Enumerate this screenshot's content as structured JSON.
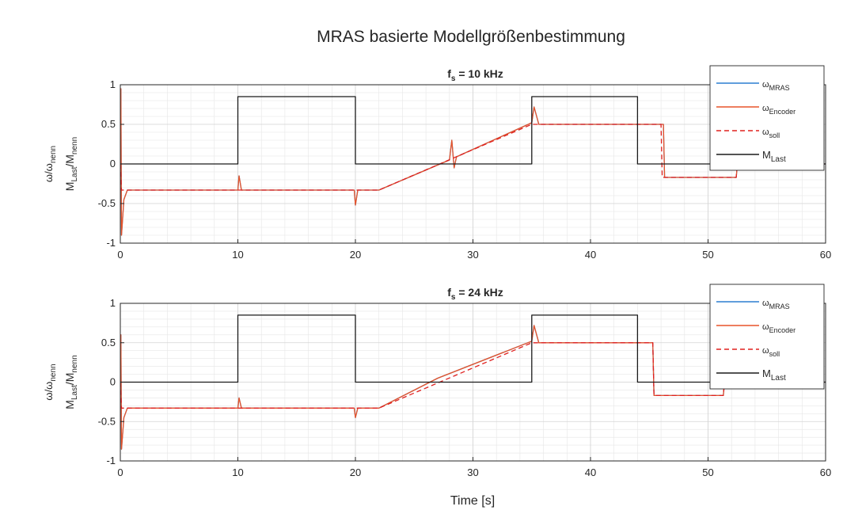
{
  "figure": {
    "title": "MRAS basierte Modellgrößenbestimmung",
    "xlabel": "Time [s]"
  },
  "colors": {
    "mras": "#2b7fd0",
    "encoder": "#e8542a",
    "soll": "#e0201f",
    "last": "#1a1a1a",
    "grid": "#e6e6e6",
    "axis": "#262626"
  },
  "chart_data": [
    {
      "type": "line",
      "title": "f_s = 10 kHz",
      "title_main": "f",
      "title_sub": "s",
      "title_rest": " = 10 kHz",
      "ylabel_top": {
        "main": "ω/ω",
        "sub": "nenn"
      },
      "ylabel_bottom": {
        "main1": "M",
        "sub1": "Last",
        "main2": "/M",
        "sub2": "nenn"
      },
      "xlim": [
        0,
        60
      ],
      "ylim": [
        -1,
        1
      ],
      "xticks": [
        0,
        10,
        20,
        30,
        40,
        50,
        60
      ],
      "yticks": [
        -1,
        -0.5,
        0,
        0.5,
        1
      ],
      "ytick_labels": [
        "-1",
        "-0.5",
        "0",
        "0.5",
        "1"
      ],
      "grid": "major and minor",
      "legend": "top-right",
      "series": [
        {
          "name": "ω_MRAS",
          "main": "ω",
          "sub": "MRAS",
          "style": "solid",
          "color_key": "mras",
          "x": [
            0,
            0.05,
            0.1,
            0.3,
            0.6,
            1.0,
            10,
            10.1,
            10.3,
            19.9,
            20.0,
            20.2,
            22,
            28,
            28.2,
            28.4,
            28.6,
            35,
            35.2,
            35.6,
            44,
            44.2,
            46.2,
            46.3,
            52.4,
            52.5,
            60
          ],
          "y": [
            0,
            0.95,
            -0.9,
            -0.45,
            -0.33,
            -0.33,
            -0.33,
            -0.15,
            -0.33,
            -0.33,
            -0.52,
            -0.33,
            -0.33,
            0.05,
            0.3,
            -0.05,
            0.09,
            0.52,
            0.72,
            0.5,
            0.5,
            0.5,
            0.5,
            -0.17,
            -0.17,
            0.0,
            0.0
          ]
        },
        {
          "name": "ω_Encoder",
          "main": "ω",
          "sub": "Encoder",
          "style": "solid",
          "color_key": "encoder",
          "x": [
            0,
            0.05,
            0.1,
            0.3,
            0.6,
            1.0,
            10,
            10.1,
            10.3,
            19.9,
            20.0,
            20.2,
            22,
            28,
            28.2,
            28.4,
            28.6,
            35,
            35.2,
            35.6,
            44,
            44.2,
            46.2,
            46.3,
            52.4,
            52.5,
            60
          ],
          "y": [
            0,
            0.95,
            -0.9,
            -0.45,
            -0.33,
            -0.33,
            -0.33,
            -0.15,
            -0.33,
            -0.33,
            -0.52,
            -0.33,
            -0.33,
            0.05,
            0.3,
            -0.05,
            0.09,
            0.52,
            0.72,
            0.5,
            0.5,
            0.5,
            0.5,
            -0.17,
            -0.17,
            0.0,
            0.0
          ]
        },
        {
          "name": "ω_soll",
          "main": "ω",
          "sub": "soll",
          "style": "dashed",
          "color_key": "soll",
          "x": [
            0,
            0.1,
            22,
            35,
            46,
            46.1,
            52.4,
            52.5,
            60
          ],
          "y": [
            0,
            -0.33,
            -0.33,
            0.5,
            0.5,
            -0.17,
            -0.17,
            0.0,
            0.0
          ]
        },
        {
          "name": "M_Last",
          "main": "M",
          "sub": "Last",
          "style": "solid",
          "color_key": "last",
          "x": [
            0,
            10,
            10,
            20,
            20,
            35,
            35,
            44,
            44,
            60
          ],
          "y": [
            0,
            0,
            0.85,
            0.85,
            0,
            0,
            0.85,
            0.85,
            0,
            0
          ]
        }
      ]
    },
    {
      "type": "line",
      "title": "f_s = 24 kHz",
      "title_main": "f",
      "title_sub": "s",
      "title_rest": " = 24 kHz",
      "ylabel_top": {
        "main": "ω/ω",
        "sub": "nenn"
      },
      "ylabel_bottom": {
        "main1": "M",
        "sub1": "Last",
        "main2": "/M",
        "sub2": "nenn"
      },
      "xlim": [
        0,
        60
      ],
      "ylim": [
        -1,
        1
      ],
      "xticks": [
        0,
        10,
        20,
        30,
        40,
        50,
        60
      ],
      "yticks": [
        -1,
        -0.5,
        0,
        0.5,
        1
      ],
      "ytick_labels": [
        "-1",
        "-0.5",
        "0",
        "0.5",
        "1"
      ],
      "grid": "major and minor",
      "legend": "top-right",
      "series": [
        {
          "name": "ω_MRAS",
          "main": "ω",
          "sub": "MRAS",
          "style": "solid",
          "color_key": "mras",
          "x": [
            0,
            0.05,
            0.1,
            0.3,
            0.6,
            1.0,
            10,
            10.1,
            10.3,
            19.9,
            20.0,
            20.2,
            22,
            27,
            35,
            35.2,
            35.6,
            44,
            44.2,
            45.3,
            45.4,
            51.3,
            51.4,
            60
          ],
          "y": [
            0,
            0.6,
            -0.85,
            -0.45,
            -0.33,
            -0.33,
            -0.33,
            -0.2,
            -0.33,
            -0.33,
            -0.45,
            -0.33,
            -0.33,
            0.05,
            0.52,
            0.72,
            0.5,
            0.5,
            0.5,
            0.5,
            -0.17,
            -0.17,
            0.0,
            0.0
          ]
        },
        {
          "name": "ω_Encoder",
          "main": "ω",
          "sub": "Encoder",
          "style": "solid",
          "color_key": "encoder",
          "x": [
            0,
            0.05,
            0.1,
            0.3,
            0.6,
            1.0,
            10,
            10.1,
            10.3,
            19.9,
            20.0,
            20.2,
            22,
            27,
            35,
            35.2,
            35.6,
            44,
            44.2,
            45.3,
            45.4,
            51.3,
            51.4,
            60
          ],
          "y": [
            0,
            0.6,
            -0.85,
            -0.45,
            -0.33,
            -0.33,
            -0.33,
            -0.2,
            -0.33,
            -0.33,
            -0.45,
            -0.33,
            -0.33,
            0.05,
            0.52,
            0.72,
            0.5,
            0.5,
            0.5,
            0.5,
            -0.17,
            -0.17,
            0.0,
            0.0
          ]
        },
        {
          "name": "ω_soll",
          "main": "ω",
          "sub": "soll",
          "style": "dashed",
          "color_key": "soll",
          "x": [
            0,
            0.1,
            22,
            35,
            45.3,
            45.4,
            51.3,
            51.4,
            60
          ],
          "y": [
            0,
            -0.33,
            -0.33,
            0.5,
            0.5,
            -0.17,
            -0.17,
            0.0,
            0.0
          ]
        },
        {
          "name": "M_Last",
          "main": "M",
          "sub": "Last",
          "style": "solid",
          "color_key": "last",
          "x": [
            0,
            10,
            10,
            20,
            20,
            35,
            35,
            44,
            44,
            60
          ],
          "y": [
            0,
            0,
            0.85,
            0.85,
            0,
            0,
            0.85,
            0.85,
            0,
            0
          ]
        }
      ]
    }
  ]
}
